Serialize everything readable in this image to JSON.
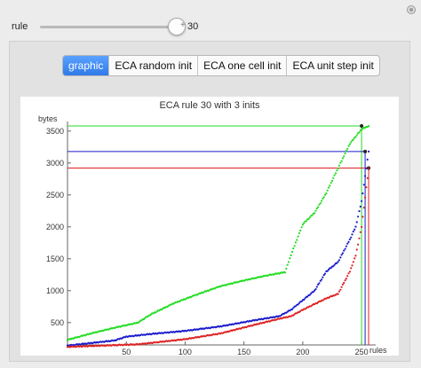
{
  "controls": {
    "rule_label": "rule",
    "rule_value": "30",
    "slider_fraction": 0.118
  },
  "tabs": [
    {
      "label": "graphic",
      "active": true
    },
    {
      "label": "ECA random init",
      "active": false
    },
    {
      "label": "ECA one cell init",
      "active": false
    },
    {
      "label": "ECA unit step init",
      "active": false
    }
  ],
  "chart_data": {
    "type": "scatter",
    "title": "ECA rule 30 with 3 inits",
    "xlabel": "rules",
    "ylabel": "bytes",
    "xlim": [
      0,
      262
    ],
    "ylim": [
      150,
      3650
    ],
    "x_ticks": [
      50,
      100,
      150,
      200,
      250
    ],
    "y_ticks": [
      500,
      1000,
      1500,
      2000,
      2500,
      3000,
      3500
    ],
    "colors": {
      "green": "#22dd22",
      "blue": "#1a1acc",
      "red": "#dd2222"
    },
    "series": [
      {
        "color": "#22dd22",
        "x": [
          0,
          20,
          40,
          60,
          70,
          90,
          110,
          130,
          150,
          170,
          185,
          190,
          200,
          210,
          220,
          230,
          240,
          250,
          256
        ],
        "y": [
          230,
          330,
          420,
          500,
          620,
          800,
          940,
          1070,
          1160,
          1240,
          1290,
          1560,
          2040,
          2220,
          2530,
          2920,
          3300,
          3530,
          3580
        ]
      },
      {
        "color": "#1a1acc",
        "x": [
          0,
          20,
          40,
          50,
          60,
          70,
          100,
          130,
          160,
          180,
          190,
          200,
          210,
          220,
          230,
          240,
          245,
          250,
          256
        ],
        "y": [
          140,
          180,
          220,
          280,
          300,
          320,
          370,
          440,
          540,
          600,
          700,
          850,
          1000,
          1300,
          1450,
          1800,
          2000,
          2400,
          3180
        ]
      },
      {
        "color": "#dd2222",
        "x": [
          0,
          30,
          60,
          80,
          100,
          130,
          160,
          180,
          190,
          200,
          210,
          220,
          230,
          240,
          245,
          250,
          256
        ],
        "y": [
          120,
          140,
          160,
          200,
          240,
          330,
          470,
          560,
          600,
          700,
          790,
          880,
          950,
          1300,
          1550,
          2000,
          2920
        ]
      }
    ],
    "reference_lines": [
      {
        "color": "#22dd22",
        "y": 3580,
        "x": 250
      },
      {
        "color": "#1a1acc",
        "y": 3180,
        "x": 253
      },
      {
        "color": "#dd2222",
        "y": 2920,
        "x": 256
      }
    ],
    "grid": false,
    "legend": "none"
  }
}
